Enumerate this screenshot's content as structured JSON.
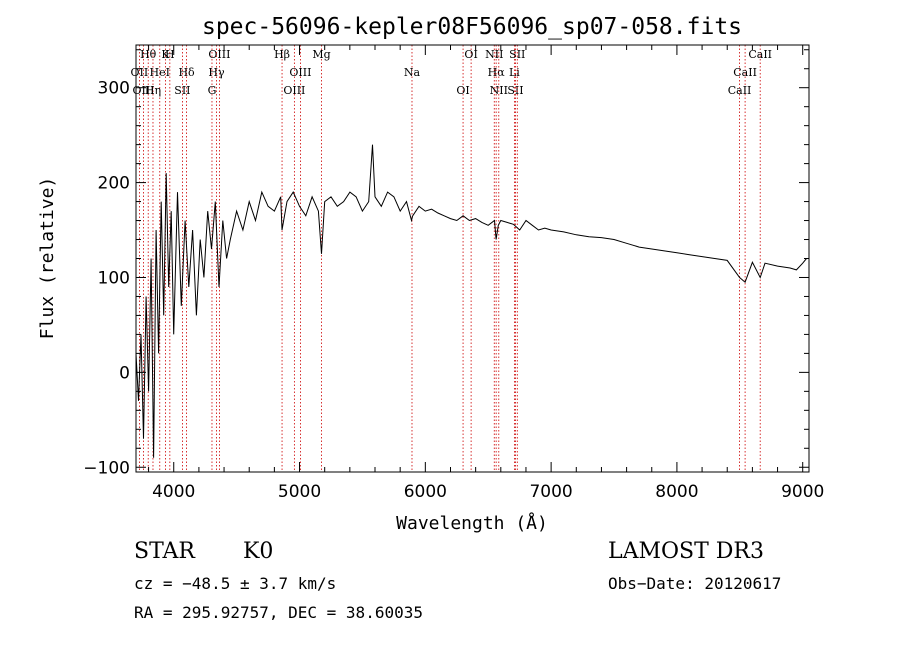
{
  "chart_data": {
    "type": "line",
    "title": "spec-56096-kepler08F56096_sp07-058.fits",
    "xlabel": "Wavelength (Å)",
    "ylabel": "Flux (relative)",
    "xlim": [
      3700,
      9050
    ],
    "ylim": [
      -105,
      345
    ],
    "x_ticks": [
      4000,
      5000,
      6000,
      7000,
      8000,
      9000
    ],
    "x_tick_labels": [
      "4000",
      "5000",
      "6000",
      "7000",
      "8000",
      "9000"
    ],
    "y_ticks": [
      -100,
      0,
      100,
      200,
      300
    ],
    "y_tick_labels": [
      "−100",
      "0",
      "100",
      "200",
      "300"
    ],
    "series": [
      {
        "name": "spectrum",
        "color": "#000000",
        "x": [
          3700,
          3720,
          3740,
          3760,
          3780,
          3800,
          3820,
          3840,
          3860,
          3880,
          3900,
          3920,
          3940,
          3960,
          3980,
          4000,
          4030,
          4060,
          4090,
          4120,
          4150,
          4180,
          4210,
          4240,
          4270,
          4300,
          4330,
          4360,
          4390,
          4420,
          4450,
          4500,
          4550,
          4600,
          4650,
          4700,
          4750,
          4800,
          4850,
          4861,
          4900,
          4950,
          5000,
          5050,
          5100,
          5150,
          5175,
          5200,
          5250,
          5300,
          5350,
          5400,
          5450,
          5500,
          5550,
          5580,
          5600,
          5650,
          5700,
          5750,
          5800,
          5850,
          5890,
          5900,
          5950,
          6000,
          6050,
          6100,
          6150,
          6200,
          6250,
          6300,
          6350,
          6400,
          6450,
          6500,
          6550,
          6563,
          6580,
          6600,
          6650,
          6700,
          6750,
          6800,
          6850,
          6900,
          6950,
          7000,
          7100,
          7200,
          7300,
          7400,
          7500,
          7600,
          7700,
          7800,
          7900,
          8000,
          8100,
          8200,
          8300,
          8400,
          8498,
          8542,
          8600,
          8662,
          8700,
          8800,
          8900,
          8950,
          9000,
          9030
        ],
        "values": [
          20,
          -30,
          40,
          -70,
          80,
          -20,
          120,
          -90,
          150,
          20,
          180,
          60,
          210,
          90,
          170,
          40,
          190,
          70,
          160,
          90,
          150,
          60,
          140,
          100,
          170,
          130,
          180,
          90,
          160,
          120,
          140,
          170,
          150,
          180,
          160,
          190,
          175,
          170,
          185,
          150,
          180,
          190,
          175,
          165,
          185,
          170,
          125,
          180,
          185,
          175,
          180,
          190,
          185,
          170,
          180,
          240,
          185,
          175,
          190,
          185,
          170,
          180,
          160,
          165,
          175,
          170,
          172,
          168,
          165,
          162,
          160,
          165,
          160,
          162,
          158,
          155,
          160,
          140,
          155,
          160,
          158,
          156,
          150,
          160,
          155,
          150,
          152,
          150,
          148,
          145,
          143,
          142,
          140,
          136,
          132,
          130,
          128,
          126,
          124,
          122,
          120,
          118,
          100,
          95,
          116,
          100,
          115,
          112,
          110,
          108,
          115,
          120
        ]
      }
    ],
    "lines": [
      {
        "name": "Hθ",
        "x": 3797
      },
      {
        "name": "OII",
        "x": 3727
      },
      {
        "name": "OIII",
        "x": 3760
      },
      {
        "name": "K",
        "x": 3934
      },
      {
        "name": "HeI",
        "x": 3889
      },
      {
        "name": "Hη",
        "x": 3835
      },
      {
        "name": "H",
        "x": 3969
      },
      {
        "name": "Hδ",
        "x": 4102
      },
      {
        "name": "SII",
        "x": 4069
      },
      {
        "name": "OIII",
        "x": 4363
      },
      {
        "name": "Hγ",
        "x": 4340
      },
      {
        "name": "G",
        "x": 4304
      },
      {
        "name": "Hβ",
        "x": 4861
      },
      {
        "name": "OIII",
        "x": 5007
      },
      {
        "name": "OIII",
        "x": 4959
      },
      {
        "name": "Mg",
        "x": 5175
      },
      {
        "name": "Na",
        "x": 5894
      },
      {
        "name": "OI",
        "x": 6300
      },
      {
        "name": "OI",
        "x": 6364
      },
      {
        "name": "Hα",
        "x": 6563
      },
      {
        "name": "SII",
        "x": 6717
      },
      {
        "name": "NII",
        "x": 6548
      },
      {
        "name": "Li",
        "x": 6708
      },
      {
        "name": "NII",
        "x": 6584
      },
      {
        "name": "SII",
        "x": 6731
      },
      {
        "name": "CaII",
        "x": 8542
      },
      {
        "name": "CaII",
        "x": 8498
      },
      {
        "name": "CaII",
        "x": 8662
      }
    ],
    "line_color": "#cc0000"
  },
  "info": {
    "object_class": "STAR",
    "subclass": "K0",
    "redshift": "cz = −48.5 ± 3.7 km/s",
    "coords": "RA = 295.92757, DEC =  38.60035",
    "survey": "LAMOST DR3",
    "obs_date": "Obs−Date: 20120617"
  }
}
